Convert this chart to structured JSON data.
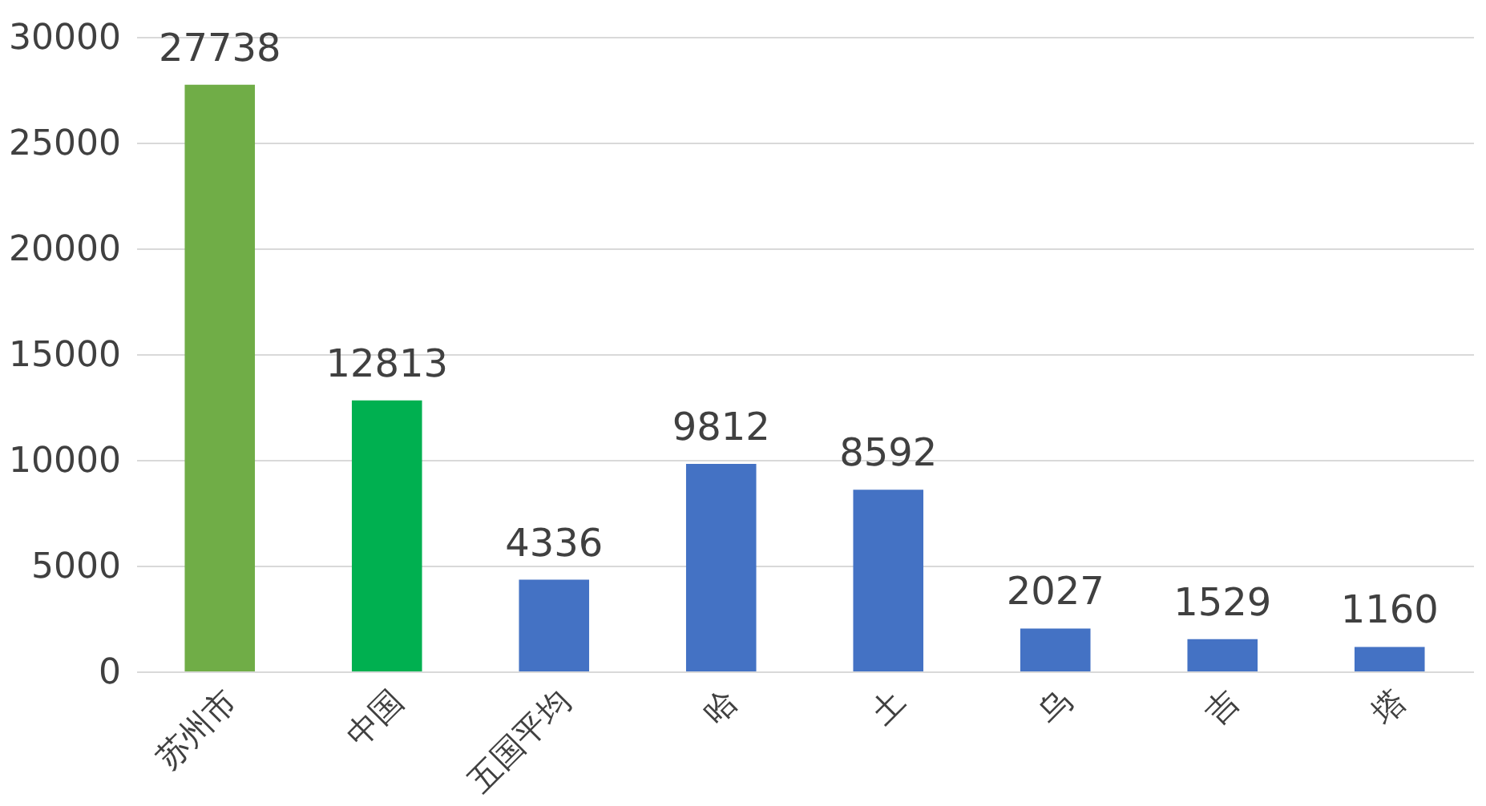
{
  "chart_data": {
    "type": "bar",
    "categories": [
      "苏州市",
      "中国",
      "五国平均",
      "哈",
      "土",
      "乌",
      "吉",
      "塔"
    ],
    "values": [
      27738,
      12813,
      4336,
      9812,
      8592,
      2027,
      1529,
      1160
    ],
    "colors": [
      "#70ad47",
      "#00b050",
      "#4472c4",
      "#4472c4",
      "#4472c4",
      "#4472c4",
      "#4472c4",
      "#4472c4"
    ],
    "ylim": [
      0,
      30000
    ],
    "yticks": [
      0,
      5000,
      10000,
      15000,
      20000,
      25000,
      30000
    ],
    "grid": "y",
    "data_labels": true
  }
}
